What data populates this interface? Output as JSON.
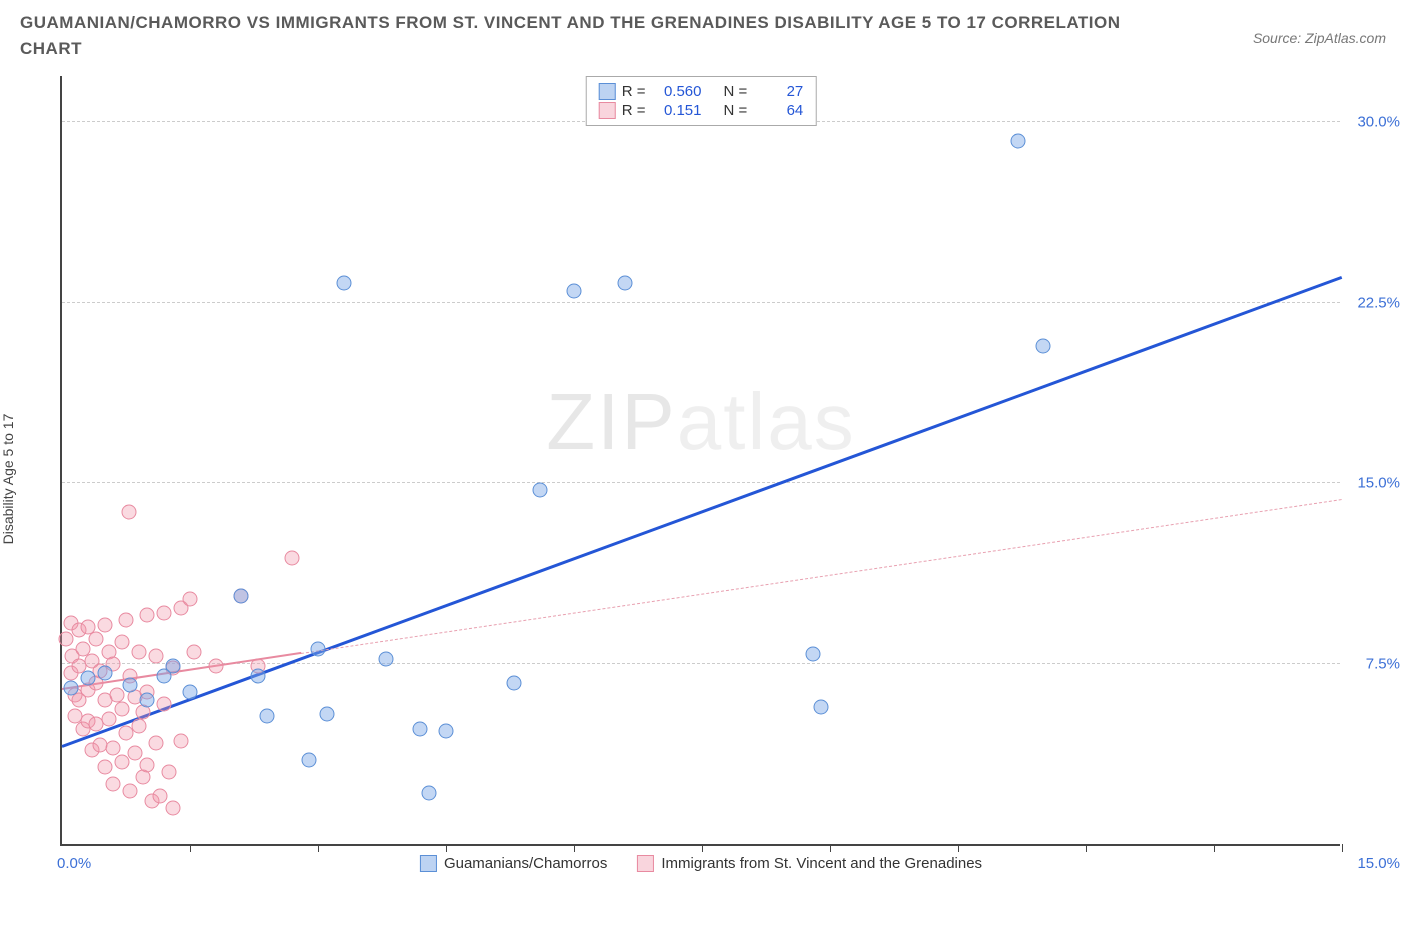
{
  "title": "GUAMANIAN/CHAMORRO VS IMMIGRANTS FROM ST. VINCENT AND THE GRENADINES DISABILITY AGE 5 TO 17 CORRELATION CHART",
  "source": "Source: ZipAtlas.com",
  "y_axis_label": "Disability Age 5 to 17",
  "watermark_main": "ZIP",
  "watermark_sub": "atlas",
  "chart": {
    "type": "scatter",
    "xlim": [
      0,
      15
    ],
    "ylim": [
      0,
      32
    ],
    "x_min_label": "0.0%",
    "x_max_label": "15.0%",
    "y_gridlines": [
      7.5,
      15.0,
      22.5,
      30.0
    ],
    "y_tick_labels": [
      "7.5%",
      "15.0%",
      "22.5%",
      "30.0%"
    ],
    "x_ticks": [
      1.5,
      3.0,
      4.5,
      6.0,
      7.5,
      9.0,
      10.5,
      12.0,
      13.5,
      15.0
    ],
    "background_color": "#ffffff",
    "grid_color": "#cccccc",
    "series": [
      {
        "name": "Guamanians/Chamorros",
        "color_fill": "rgba(123,167,230,0.45)",
        "color_stroke": "#5b8fd6",
        "r_value": "0.560",
        "n_value": "27",
        "marker_size": 15,
        "trend": {
          "x1": 0,
          "y1": 4.0,
          "x2": 15,
          "y2": 23.5,
          "color": "#2456d6",
          "width": 3,
          "dash": false
        },
        "points": [
          [
            0.1,
            6.5
          ],
          [
            0.3,
            6.9
          ],
          [
            0.5,
            7.1
          ],
          [
            0.8,
            6.6
          ],
          [
            1.0,
            6.0
          ],
          [
            1.2,
            7.0
          ],
          [
            1.3,
            7.4
          ],
          [
            1.5,
            6.3
          ],
          [
            2.1,
            10.3
          ],
          [
            2.3,
            7.0
          ],
          [
            2.4,
            5.3
          ],
          [
            2.9,
            3.5
          ],
          [
            3.0,
            8.1
          ],
          [
            3.1,
            5.4
          ],
          [
            3.3,
            23.3
          ],
          [
            3.8,
            7.7
          ],
          [
            4.2,
            4.8
          ],
          [
            4.3,
            2.1
          ],
          [
            4.5,
            4.7
          ],
          [
            5.3,
            6.7
          ],
          [
            5.6,
            14.7
          ],
          [
            6.0,
            23.0
          ],
          [
            6.6,
            23.3
          ],
          [
            8.8,
            7.9
          ],
          [
            8.9,
            5.7
          ],
          [
            11.2,
            29.2
          ],
          [
            11.5,
            20.7
          ]
        ]
      },
      {
        "name": "Immigrants from St. Vincent and the Grenadines",
        "color_fill": "rgba(240,150,170,0.35)",
        "color_stroke": "#e88aa0",
        "r_value": "0.151",
        "n_value": "64",
        "marker_size": 15,
        "trend_solid": {
          "x1": 0,
          "y1": 6.4,
          "x2": 2.8,
          "y2": 7.9,
          "color": "#e88aa0",
          "width": 2,
          "dash": false
        },
        "trend_dash": {
          "x1": 2.8,
          "y1": 7.9,
          "x2": 15,
          "y2": 14.3,
          "color": "#e8a0b0",
          "width": 1.5,
          "dash": true
        },
        "points": [
          [
            0.05,
            8.5
          ],
          [
            0.1,
            9.2
          ],
          [
            0.1,
            7.1
          ],
          [
            0.12,
            7.8
          ],
          [
            0.15,
            6.2
          ],
          [
            0.15,
            5.3
          ],
          [
            0.2,
            8.9
          ],
          [
            0.2,
            7.4
          ],
          [
            0.2,
            6.0
          ],
          [
            0.25,
            8.1
          ],
          [
            0.25,
            4.8
          ],
          [
            0.3,
            9.0
          ],
          [
            0.3,
            6.4
          ],
          [
            0.3,
            5.1
          ],
          [
            0.35,
            7.6
          ],
          [
            0.35,
            3.9
          ],
          [
            0.4,
            8.5
          ],
          [
            0.4,
            6.7
          ],
          [
            0.4,
            5.0
          ],
          [
            0.45,
            7.2
          ],
          [
            0.45,
            4.1
          ],
          [
            0.5,
            9.1
          ],
          [
            0.5,
            6.0
          ],
          [
            0.5,
            3.2
          ],
          [
            0.55,
            8.0
          ],
          [
            0.55,
            5.2
          ],
          [
            0.6,
            7.5
          ],
          [
            0.6,
            4.0
          ],
          [
            0.6,
            2.5
          ],
          [
            0.65,
            6.2
          ],
          [
            0.7,
            8.4
          ],
          [
            0.7,
            5.6
          ],
          [
            0.7,
            3.4
          ],
          [
            0.75,
            9.3
          ],
          [
            0.75,
            4.6
          ],
          [
            0.78,
            13.8
          ],
          [
            0.8,
            7.0
          ],
          [
            0.8,
            2.2
          ],
          [
            0.85,
            6.1
          ],
          [
            0.85,
            3.8
          ],
          [
            0.9,
            8.0
          ],
          [
            0.9,
            4.9
          ],
          [
            0.95,
            5.5
          ],
          [
            0.95,
            2.8
          ],
          [
            1.0,
            9.5
          ],
          [
            1.0,
            6.3
          ],
          [
            1.0,
            3.3
          ],
          [
            1.05,
            1.8
          ],
          [
            1.1,
            7.8
          ],
          [
            1.1,
            4.2
          ],
          [
            1.15,
            2.0
          ],
          [
            1.2,
            9.6
          ],
          [
            1.2,
            5.8
          ],
          [
            1.25,
            3.0
          ],
          [
            1.3,
            7.3
          ],
          [
            1.3,
            1.5
          ],
          [
            1.4,
            9.8
          ],
          [
            1.4,
            4.3
          ],
          [
            1.5,
            10.2
          ],
          [
            1.55,
            8.0
          ],
          [
            1.8,
            7.4
          ],
          [
            2.1,
            10.3
          ],
          [
            2.3,
            7.4
          ],
          [
            2.7,
            11.9
          ]
        ]
      }
    ]
  },
  "legend": {
    "series1_label": "Guamanians/Chamorros",
    "series2_label": "Immigrants from St. Vincent and the Grenadines",
    "r_label": "R =",
    "n_label": "N ="
  }
}
